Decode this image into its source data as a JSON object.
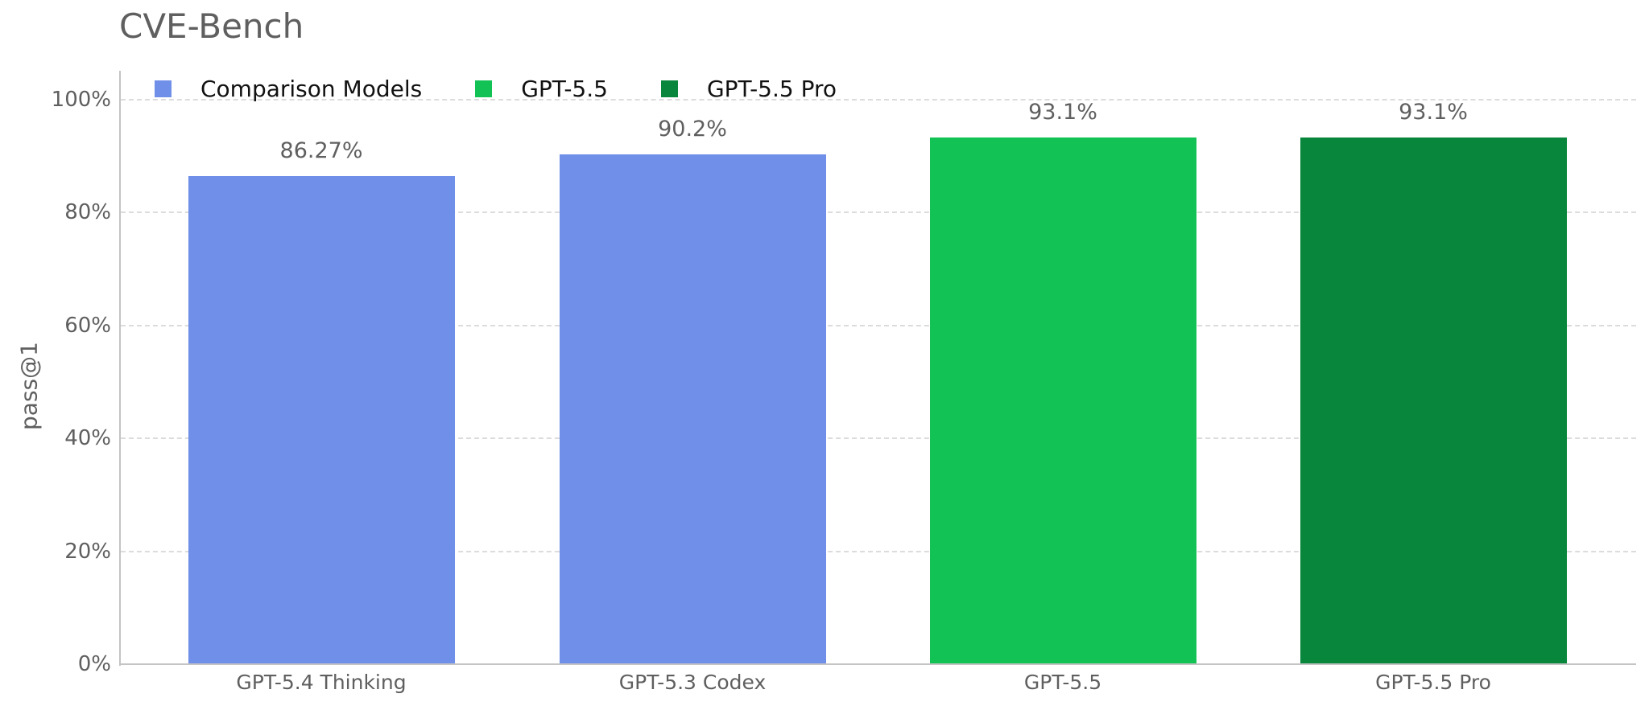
{
  "chart_data": {
    "type": "bar",
    "title": "CVE-Bench",
    "xlabel": "",
    "ylabel": "pass@1",
    "ylim": [
      0,
      100
    ],
    "yticks": [
      "0%",
      "20%",
      "40%",
      "60%",
      "80%",
      "100%"
    ],
    "grid": true,
    "legend_position": "top-left inside",
    "categories": [
      "GPT-5.4 Thinking",
      "GPT-5.3 Codex",
      "GPT-5.5",
      "GPT-5.5 Pro"
    ],
    "values": [
      86.27,
      90.2,
      93.1,
      93.1
    ],
    "value_labels": [
      "86.27%",
      "90.2%",
      "93.1%",
      "93.1%"
    ],
    "bar_colors": [
      "#6f8fe8",
      "#6f8fe8",
      "#13c255",
      "#08873c"
    ],
    "legend": [
      {
        "label": "Comparison Models",
        "color": "#6f8fe8"
      },
      {
        "label": "GPT-5.5",
        "color": "#13c255"
      },
      {
        "label": "GPT-5.5 Pro",
        "color": "#08873c"
      }
    ]
  }
}
